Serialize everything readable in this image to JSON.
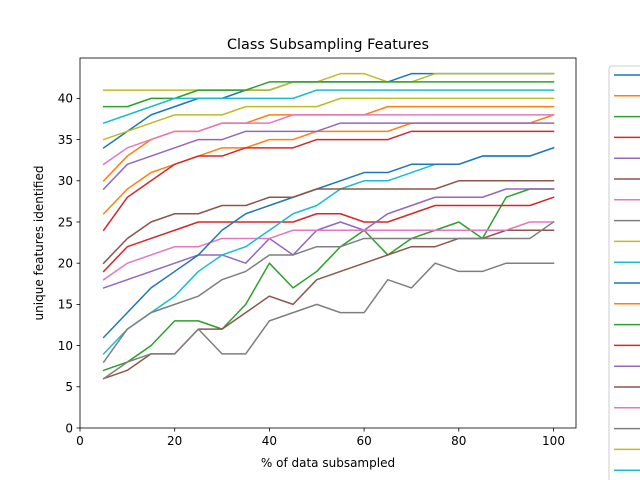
{
  "chart_data": {
    "type": "line",
    "title": "Class Subsampling Features",
    "xlabel": "% of data subsampled",
    "ylabel": "unique features identified",
    "xlim": [
      0,
      104.75
    ],
    "ylim": [
      0,
      44.9
    ],
    "xticks": [
      0,
      20,
      40,
      60,
      80,
      100
    ],
    "yticks": [
      0,
      5,
      10,
      15,
      20,
      25,
      30,
      35,
      40
    ],
    "grid": false,
    "legend": "outside right, clipped (no text visible)",
    "x": [
      5,
      10,
      15,
      20,
      25,
      30,
      35,
      40,
      45,
      50,
      55,
      60,
      65,
      70,
      75,
      80,
      85,
      90,
      95,
      100
    ],
    "legend_colors": [
      "#1f77b4",
      "#ff7f0e",
      "#2ca02c",
      "#d62728",
      "#9467bd",
      "#8c564b",
      "#e377c2",
      "#7f7f7f",
      "#bcbd22",
      "#17becf",
      "#1f77b4",
      "#ff7f0e",
      "#2ca02c",
      "#d62728",
      "#9467bd",
      "#8c564b",
      "#e377c2",
      "#7f7f7f",
      "#bcbd22",
      "#17becf"
    ],
    "series": [
      {
        "color": "#1f77b4",
        "values": [
          34,
          36,
          38,
          39,
          40,
          40,
          41,
          41,
          42,
          42,
          42,
          42,
          42,
          43,
          43,
          43,
          43,
          43,
          43,
          43
        ]
      },
      {
        "color": "#ff7f0e",
        "values": [
          30,
          33,
          35,
          36,
          36,
          37,
          37,
          38,
          38,
          38,
          38,
          38,
          39,
          39,
          39,
          39,
          39,
          39,
          39,
          39
        ]
      },
      {
        "color": "#2ca02c",
        "values": [
          7,
          8,
          10,
          13,
          13,
          12,
          15,
          20,
          17,
          19,
          22,
          24,
          21,
          23,
          24,
          25,
          23,
          28,
          29,
          29
        ]
      },
      {
        "color": "#d62728",
        "values": [
          19,
          22,
          23,
          24,
          25,
          25,
          25,
          25,
          25,
          26,
          26,
          25,
          25,
          26,
          27,
          27,
          27,
          27,
          27,
          28
        ]
      },
      {
        "color": "#9467bd",
        "values": [
          17,
          18,
          19,
          20,
          21,
          21,
          20,
          23,
          21,
          24,
          25,
          24,
          26,
          27,
          28,
          28,
          28,
          29,
          29,
          29
        ]
      },
      {
        "color": "#8c564b",
        "values": [
          6,
          7,
          9,
          9,
          12,
          12,
          14,
          16,
          15,
          18,
          19,
          20,
          21,
          22,
          22,
          23,
          23,
          24,
          24,
          24
        ]
      },
      {
        "color": "#e377c2",
        "values": [
          18,
          20,
          21,
          22,
          22,
          23,
          23,
          23,
          24,
          24,
          24,
          24,
          24,
          24,
          24,
          24,
          24,
          24,
          25,
          25
        ]
      },
      {
        "color": "#7f7f7f",
        "values": [
          6,
          8,
          9,
          9,
          12,
          9,
          9,
          13,
          14,
          15,
          14,
          14,
          18,
          17,
          20,
          19,
          19,
          20,
          20,
          20
        ]
      },
      {
        "color": "#bcbd22",
        "values": [
          41,
          41,
          41,
          41,
          41,
          41,
          41,
          41,
          42,
          42,
          43,
          43,
          42,
          42,
          43,
          43,
          43,
          43,
          43,
          43
        ]
      },
      {
        "color": "#17becf",
        "values": [
          9,
          12,
          14,
          16,
          19,
          21,
          22,
          24,
          26,
          27,
          29,
          30,
          30,
          31,
          32,
          32,
          33,
          33,
          33,
          34
        ]
      },
      {
        "color": "#1f77b4",
        "values": [
          11,
          14,
          17,
          19,
          21,
          24,
          26,
          27,
          28,
          29,
          30,
          31,
          31,
          32,
          32,
          32,
          33,
          33,
          33,
          34
        ]
      },
      {
        "color": "#ff7f0e",
        "values": [
          26,
          29,
          31,
          32,
          33,
          34,
          34,
          35,
          35,
          36,
          36,
          36,
          36,
          37,
          37,
          37,
          37,
          37,
          37,
          38
        ]
      },
      {
        "color": "#2ca02c",
        "values": [
          39,
          39,
          40,
          40,
          41,
          41,
          41,
          42,
          42,
          42,
          42,
          42,
          42,
          42,
          42,
          42,
          42,
          42,
          42,
          42
        ]
      },
      {
        "color": "#d62728",
        "values": [
          24,
          28,
          30,
          32,
          33,
          33,
          34,
          34,
          34,
          35,
          35,
          35,
          35,
          36,
          36,
          36,
          36,
          36,
          36,
          36
        ]
      },
      {
        "color": "#9467bd",
        "values": [
          29,
          32,
          33,
          34,
          35,
          35,
          36,
          36,
          36,
          36,
          37,
          37,
          37,
          37,
          37,
          37,
          37,
          37,
          37,
          37
        ]
      },
      {
        "color": "#8c564b",
        "values": [
          20,
          23,
          25,
          26,
          26,
          27,
          27,
          28,
          28,
          29,
          29,
          29,
          29,
          29,
          29,
          30,
          30,
          30,
          30,
          30
        ]
      },
      {
        "color": "#e377c2",
        "values": [
          32,
          34,
          35,
          36,
          36,
          37,
          37,
          37,
          38,
          38,
          38,
          38,
          38,
          38,
          38,
          38,
          38,
          38,
          38,
          38
        ]
      },
      {
        "color": "#7f7f7f",
        "values": [
          8,
          12,
          14,
          15,
          16,
          18,
          19,
          21,
          21,
          22,
          22,
          23,
          23,
          23,
          23,
          23,
          23,
          23,
          23,
          25
        ]
      },
      {
        "color": "#bcbd22",
        "values": [
          35,
          36,
          37,
          38,
          38,
          38,
          39,
          39,
          39,
          39,
          40,
          40,
          40,
          40,
          40,
          40,
          40,
          40,
          40,
          40
        ]
      },
      {
        "color": "#17becf",
        "values": [
          37,
          38,
          39,
          40,
          40,
          40,
          40,
          40,
          40,
          41,
          41,
          41,
          41,
          41,
          41,
          41,
          41,
          41,
          41,
          41
        ]
      }
    ]
  }
}
